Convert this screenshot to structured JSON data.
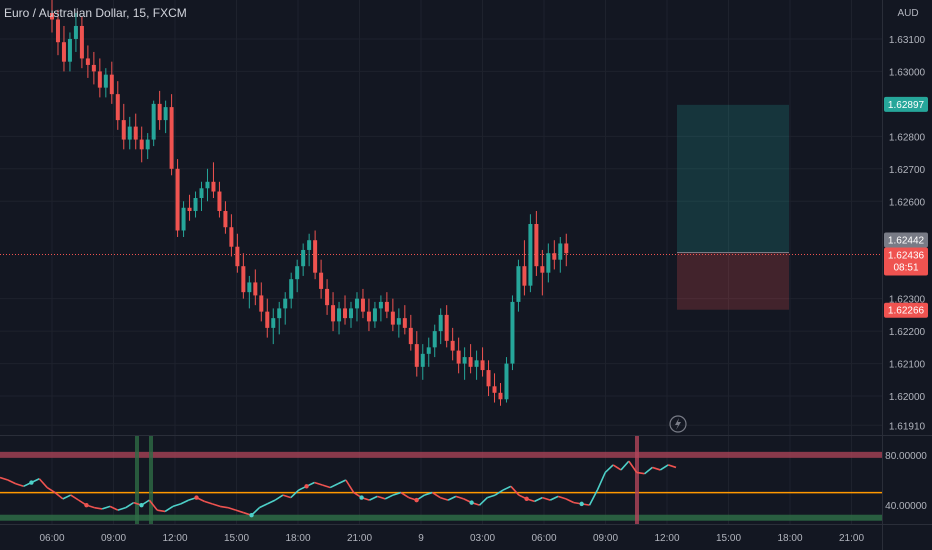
{
  "symbol": {
    "title": "Euro / Australian Dollar, 15, FXCM",
    "currency": "AUD"
  },
  "colors": {
    "background": "#131722",
    "up": "#26a69a",
    "down": "#ef5350",
    "text": "#d1d4dc",
    "axis_text": "#b2b5be",
    "grid": "#1e222d",
    "current_price_line": "#ef5350",
    "rsi_up": "#4dd0c8",
    "rsi_down": "#ef5350",
    "rsi_mid": "#ff9800",
    "rsi_top_band": "#b2455a",
    "rsi_bottom_band": "#2e6b45"
  },
  "price_labels": {
    "target": "1.62897",
    "entry": "1.62442",
    "current": "1.62436",
    "countdown": "08:51",
    "stop": "1.62266"
  },
  "rsi_labels": [
    "80.00000",
    "40.00000"
  ],
  "chart_data": {
    "type": "candlestick",
    "price_axis": {
      "min": 1.6188,
      "max": 1.6322,
      "ticks": [
        "1.63100",
        "1.63000",
        "1.62800",
        "1.62700",
        "1.62600",
        "1.62300",
        "1.62200",
        "1.62100",
        "1.62000",
        "1.61910"
      ]
    },
    "time_axis": {
      "ticks": [
        "06:00",
        "09:00",
        "12:00",
        "15:00",
        "18:00",
        "21:00",
        "9",
        "03:00",
        "06:00",
        "09:00",
        "12:00",
        "15:00",
        "18:00",
        "21:00"
      ]
    },
    "candles": [
      [
        1.6318,
        1.6322,
        1.6312,
        1.6316
      ],
      [
        1.6316,
        1.6319,
        1.6305,
        1.6309
      ],
      [
        1.6309,
        1.6314,
        1.63,
        1.6303
      ],
      [
        1.6303,
        1.6312,
        1.63,
        1.631
      ],
      [
        1.631,
        1.6318,
        1.6306,
        1.6314
      ],
      [
        1.6314,
        1.6317,
        1.6301,
        1.6304
      ],
      [
        1.6304,
        1.6308,
        1.6298,
        1.6302
      ],
      [
        1.6302,
        1.6306,
        1.6296,
        1.63
      ],
      [
        1.63,
        1.6304,
        1.6292,
        1.6295
      ],
      [
        1.6295,
        1.6301,
        1.6292,
        1.6299
      ],
      [
        1.6299,
        1.6303,
        1.629,
        1.6293
      ],
      [
        1.6293,
        1.6297,
        1.6282,
        1.6285
      ],
      [
        1.6285,
        1.629,
        1.6276,
        1.6279
      ],
      [
        1.6279,
        1.6286,
        1.6276,
        1.6283
      ],
      [
        1.6283,
        1.6287,
        1.6276,
        1.6279
      ],
      [
        1.6279,
        1.6283,
        1.6272,
        1.6276
      ],
      [
        1.6276,
        1.6281,
        1.6273,
        1.6279
      ],
      [
        1.6279,
        1.6291,
        1.6277,
        1.629
      ],
      [
        1.629,
        1.6294,
        1.6282,
        1.6285
      ],
      [
        1.6285,
        1.6291,
        1.6281,
        1.6289
      ],
      [
        1.6289,
        1.6293,
        1.6268,
        1.627
      ],
      [
        1.627,
        1.6273,
        1.6249,
        1.6251
      ],
      [
        1.6251,
        1.626,
        1.6249,
        1.6258
      ],
      [
        1.6258,
        1.6262,
        1.6254,
        1.6257
      ],
      [
        1.6257,
        1.6263,
        1.6255,
        1.6261
      ],
      [
        1.6261,
        1.6266,
        1.6257,
        1.6264
      ],
      [
        1.6264,
        1.627,
        1.626,
        1.6266
      ],
      [
        1.6266,
        1.6272,
        1.6261,
        1.6263
      ],
      [
        1.6263,
        1.6266,
        1.6255,
        1.6257
      ],
      [
        1.6257,
        1.626,
        1.625,
        1.6252
      ],
      [
        1.6252,
        1.6256,
        1.6243,
        1.6246
      ],
      [
        1.6246,
        1.625,
        1.6238,
        1.624
      ],
      [
        1.624,
        1.6244,
        1.623,
        1.6232
      ],
      [
        1.6232,
        1.6237,
        1.6227,
        1.6235
      ],
      [
        1.6235,
        1.6239,
        1.6228,
        1.6231
      ],
      [
        1.6231,
        1.6235,
        1.6223,
        1.6226
      ],
      [
        1.6226,
        1.623,
        1.6218,
        1.6221
      ],
      [
        1.6221,
        1.6227,
        1.6216,
        1.6224
      ],
      [
        1.6224,
        1.6229,
        1.6219,
        1.6227
      ],
      [
        1.6227,
        1.6232,
        1.6222,
        1.623
      ],
      [
        1.623,
        1.6238,
        1.6227,
        1.6236
      ],
      [
        1.6236,
        1.6242,
        1.6232,
        1.624
      ],
      [
        1.624,
        1.6247,
        1.6237,
        1.6245
      ],
      [
        1.6245,
        1.625,
        1.624,
        1.6248
      ],
      [
        1.6248,
        1.6251,
        1.6236,
        1.6238
      ],
      [
        1.6238,
        1.6242,
        1.623,
        1.6233
      ],
      [
        1.6233,
        1.6236,
        1.6225,
        1.6228
      ],
      [
        1.6228,
        1.6232,
        1.622,
        1.6223
      ],
      [
        1.6223,
        1.6229,
        1.6219,
        1.6227
      ],
      [
        1.6227,
        1.6231,
        1.6222,
        1.6224
      ],
      [
        1.6224,
        1.6229,
        1.6221,
        1.6227
      ],
      [
        1.6227,
        1.6232,
        1.6223,
        1.623
      ],
      [
        1.623,
        1.6233,
        1.6224,
        1.6226
      ],
      [
        1.6226,
        1.623,
        1.622,
        1.6223
      ],
      [
        1.6223,
        1.6229,
        1.6221,
        1.6227
      ],
      [
        1.6227,
        1.6231,
        1.6223,
        1.6229
      ],
      [
        1.6229,
        1.6232,
        1.6224,
        1.6226
      ],
      [
        1.6226,
        1.623,
        1.622,
        1.6222
      ],
      [
        1.6222,
        1.6227,
        1.6218,
        1.6224
      ],
      [
        1.6224,
        1.6228,
        1.6219,
        1.6221
      ],
      [
        1.6221,
        1.6225,
        1.6214,
        1.6216
      ],
      [
        1.6216,
        1.622,
        1.6206,
        1.6209
      ],
      [
        1.6209,
        1.6216,
        1.6205,
        1.6213
      ],
      [
        1.6213,
        1.6218,
        1.6209,
        1.6215
      ],
      [
        1.6215,
        1.6222,
        1.6212,
        1.622
      ],
      [
        1.622,
        1.6227,
        1.6216,
        1.6225
      ],
      [
        1.6225,
        1.6228,
        1.6215,
        1.6217
      ],
      [
        1.6217,
        1.6221,
        1.6211,
        1.6214
      ],
      [
        1.6214,
        1.6218,
        1.6207,
        1.621
      ],
      [
        1.621,
        1.6215,
        1.6205,
        1.6212
      ],
      [
        1.6212,
        1.6216,
        1.6207,
        1.6209
      ],
      [
        1.6209,
        1.6214,
        1.6205,
        1.6211
      ],
      [
        1.6211,
        1.6215,
        1.6206,
        1.6208
      ],
      [
        1.6208,
        1.6211,
        1.62,
        1.6203
      ],
      [
        1.6203,
        1.6207,
        1.6198,
        1.6201
      ],
      [
        1.6201,
        1.6204,
        1.6197,
        1.6199
      ],
      [
        1.6199,
        1.6212,
        1.6198,
        1.621
      ],
      [
        1.621,
        1.6231,
        1.6208,
        1.6229
      ],
      [
        1.6229,
        1.6242,
        1.6226,
        1.624
      ],
      [
        1.624,
        1.6248,
        1.6231,
        1.6234
      ],
      [
        1.6234,
        1.6256,
        1.6232,
        1.6253
      ],
      [
        1.6253,
        1.6257,
        1.6237,
        1.624
      ],
      [
        1.624,
        1.6245,
        1.6231,
        1.6238
      ],
      [
        1.6238,
        1.6247,
        1.6235,
        1.6244
      ],
      [
        1.6244,
        1.6248,
        1.6239,
        1.6242
      ],
      [
        1.6242,
        1.6249,
        1.6238,
        1.6247
      ],
      [
        1.6247,
        1.625,
        1.624,
        1.6244
      ]
    ],
    "position": {
      "target": 1.62897,
      "entry": 1.62442,
      "stop": 1.62266
    },
    "rsi": {
      "axis_min": 25,
      "axis_max": 95,
      "upper": 80,
      "lower": 30,
      "mid": 50,
      "values": [
        62,
        60,
        57,
        55,
        58,
        61,
        54,
        50,
        45,
        48,
        44,
        40,
        38,
        37,
        39,
        36,
        38,
        42,
        40,
        44,
        36,
        35,
        39,
        41,
        44,
        46,
        43,
        41,
        39,
        38,
        36,
        34,
        32,
        38,
        41,
        44,
        48,
        46,
        52,
        55,
        58,
        56,
        54,
        57,
        60,
        50,
        46,
        44,
        47,
        45,
        48,
        50,
        46,
        44,
        48,
        50,
        46,
        44,
        47,
        45,
        42,
        40,
        46,
        48,
        52,
        55,
        48,
        45,
        43,
        46,
        44,
        47,
        45,
        42,
        41,
        40,
        52,
        66,
        72,
        68,
        75,
        66,
        65,
        70,
        68,
        72,
        70
      ]
    }
  }
}
